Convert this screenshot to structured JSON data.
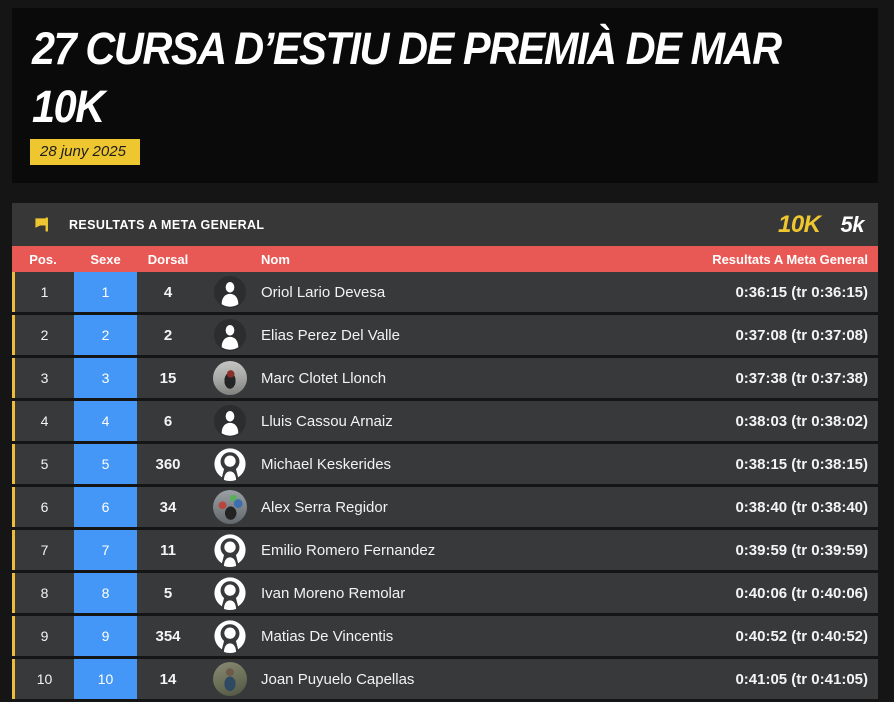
{
  "header": {
    "title_line1": "27 CURSA D’ESTIU DE PREMIÀ DE MAR",
    "title_line2": "10K",
    "date_badge": "28 juny 2025"
  },
  "panel": {
    "section_title": "RESULTATS A META GENERAL",
    "flag_icon": "yellow-flag-icon",
    "tabs": [
      {
        "label": "10K",
        "active": true
      },
      {
        "label": "5k",
        "active": false
      }
    ],
    "columns": {
      "pos": "Pos.",
      "sexe": "Sexe",
      "dorsal": "Dorsal",
      "nom": "Nom",
      "resultat": "Resultats A Meta General"
    }
  },
  "rows": [
    {
      "pos": "1",
      "sexe": "1",
      "dorsal": "4",
      "avatar": "person-silhouette",
      "nom": "Oriol Lario Devesa",
      "temps": "0:36:15 (tr 0:36:15)"
    },
    {
      "pos": "2",
      "sexe": "2",
      "dorsal": "2",
      "avatar": "person-silhouette",
      "nom": "Elias Perez Del Valle",
      "temps": "0:37:08 (tr 0:37:08)"
    },
    {
      "pos": "3",
      "sexe": "3",
      "dorsal": "15",
      "avatar": "runner-photo",
      "nom": "Marc Clotet Llonch",
      "temps": "0:37:38 (tr 0:37:38)"
    },
    {
      "pos": "4",
      "sexe": "4",
      "dorsal": "6",
      "avatar": "person-silhouette",
      "nom": "Lluis Cassou Arnaiz",
      "temps": "0:38:03 (tr 0:38:02)"
    },
    {
      "pos": "5",
      "sexe": "5",
      "dorsal": "360",
      "avatar": "person-silhouette",
      "nom": "Michael Keskerides",
      "temps": "0:38:15 (tr 0:38:15)"
    },
    {
      "pos": "6",
      "sexe": "6",
      "dorsal": "34",
      "avatar": "runner-photo",
      "nom": "Alex Serra Regidor",
      "temps": "0:38:40 (tr 0:38:40)"
    },
    {
      "pos": "7",
      "sexe": "7",
      "dorsal": "11",
      "avatar": "person-silhouette",
      "nom": "Emilio Romero Fernandez",
      "temps": "0:39:59 (tr 0:39:59)"
    },
    {
      "pos": "8",
      "sexe": "8",
      "dorsal": "5",
      "avatar": "person-silhouette",
      "nom": "Ivan Moreno Remolar",
      "temps": "0:40:06 (tr 0:40:06)"
    },
    {
      "pos": "9",
      "sexe": "9",
      "dorsal": "354",
      "avatar": "person-silhouette",
      "nom": "Matias De Vincentis",
      "temps": "0:40:52 (tr 0:40:52)"
    },
    {
      "pos": "10",
      "sexe": "10",
      "dorsal": "14",
      "avatar": "runner-photo",
      "nom": "Joan Puyuelo Capellas",
      "temps": "0:41:05 (tr 0:41:05)"
    }
  ],
  "colors": {
    "accent_yellow": "#eec62f",
    "row_border_yellow": "#edbc3a",
    "header_red": "#e85956",
    "sexe_blue": "#4497f6",
    "row_bg": "#38393b",
    "section_bar_bg": "#373737",
    "title_block_bg": "#0a0a0a",
    "page_bg": "#151515"
  }
}
